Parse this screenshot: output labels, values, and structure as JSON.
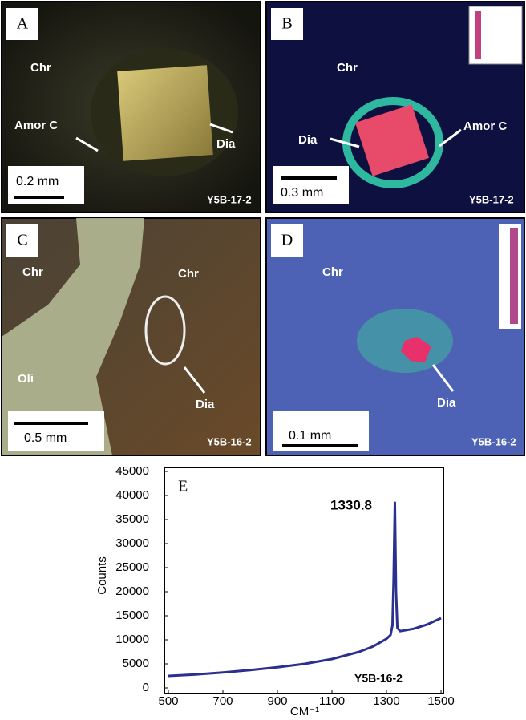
{
  "panels": [
    {
      "letter": "A",
      "labels": [
        "Chr",
        "Amor C",
        "Dia"
      ],
      "scale": "0.2 mm",
      "sample": "Y5B-17-2"
    },
    {
      "letter": "B",
      "labels": [
        "Chr",
        "Dia",
        "Amor C"
      ],
      "scale": "0.3 mm",
      "sample": "Y5B-17-2"
    },
    {
      "letter": "C",
      "labels": [
        "Chr",
        "Chr",
        "Oli",
        "Dia"
      ],
      "scale": "0.5 mm",
      "sample": "Y5B-16-2"
    },
    {
      "letter": "D",
      "labels": [
        "Chr",
        "Dia"
      ],
      "scale": "0.1 mm",
      "sample": "Y5B-16-2"
    }
  ],
  "chart_data": {
    "type": "line",
    "panel_label": "E",
    "peak_label": "1330.8",
    "sample_label": "Y5B-16-2",
    "x_label": "CM⁻¹",
    "y_label": "Counts",
    "x": [
      500,
      600,
      700,
      800,
      900,
      1000,
      1100,
      1200,
      1250,
      1300,
      1315,
      1322,
      1326,
      1330.8,
      1335,
      1340,
      1350,
      1400,
      1450,
      1500
    ],
    "series": [
      {
        "color": "#2b2f8f",
        "values": [
          2500,
          2800,
          3200,
          3700,
          4300,
          5000,
          6000,
          7500,
          8600,
          10200,
          11000,
          13000,
          22000,
          38500,
          20000,
          12500,
          11800,
          12300,
          13200,
          14500
        ]
      }
    ],
    "xlim": [
      500,
      1500
    ],
    "xticks": [
      500,
      700,
      900,
      1100,
      1300,
      1500
    ],
    "ylim": [
      0,
      45000
    ],
    "yticks": [
      0,
      5000,
      10000,
      15000,
      20000,
      25000,
      30000,
      35000,
      40000,
      45000
    ]
  }
}
